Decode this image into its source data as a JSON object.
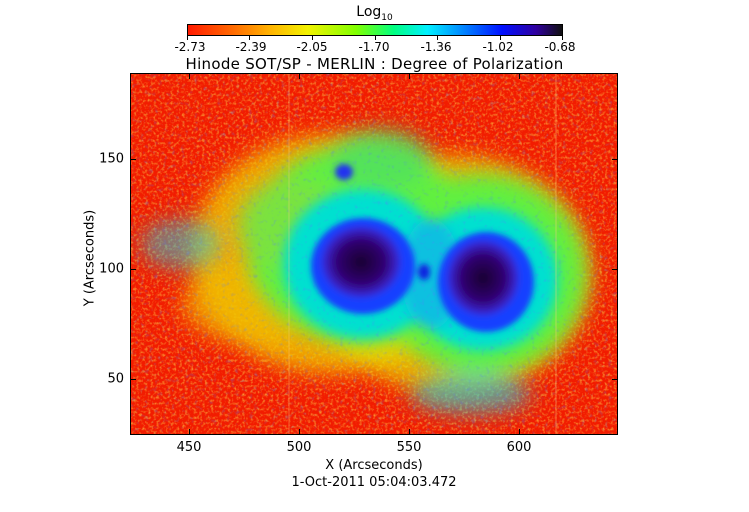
{
  "colorbar": {
    "title_main": "Log",
    "title_sub": "10",
    "labels": [
      "-2.73",
      "-2.39",
      "-2.05",
      "-1.70",
      "-1.36",
      "-1.02",
      "-0.68"
    ]
  },
  "title": "Hinode SOT/SP - MERLIN : Degree of Polarization",
  "xaxis": {
    "label": "X (Arcseconds)",
    "ticks": [
      "450",
      "500",
      "550",
      "600"
    ]
  },
  "yaxis": {
    "label": "Y (Arcseconds)",
    "ticks": [
      "150",
      "100",
      "50"
    ]
  },
  "timestamp": "1-Oct-2011 05:04:03.472",
  "colors": {
    "low": "#ff1a00",
    "mid": "#00ff80",
    "high": "#101010"
  }
}
